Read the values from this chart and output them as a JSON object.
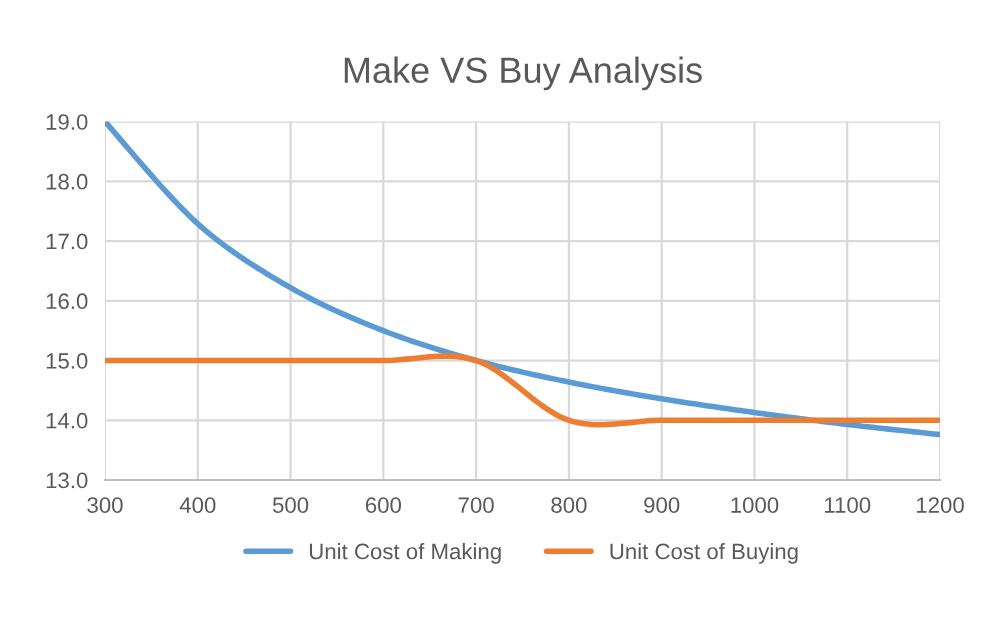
{
  "chart_data": {
    "type": "line",
    "title": "Make VS Buy Analysis",
    "x": [
      300,
      400,
      500,
      600,
      700,
      800,
      900,
      1000,
      1100,
      1200
    ],
    "series": [
      {
        "name": "Unit Cost of Making",
        "color": "#5b9bd5",
        "values": [
          19.0,
          17.29,
          16.22,
          15.5,
          15.0,
          14.64,
          14.36,
          14.13,
          13.93,
          13.76
        ]
      },
      {
        "name": "Unit Cost of Buying",
        "color": "#ed7d31",
        "values": [
          15,
          15,
          15,
          15,
          15,
          14,
          14,
          14,
          14,
          14
        ]
      }
    ],
    "xlim": [
      300,
      1200
    ],
    "xticks": [
      300,
      400,
      500,
      600,
      700,
      800,
      900,
      1000,
      1100,
      1200
    ],
    "ylim": [
      13,
      19
    ],
    "yticks": [
      {
        "value": 13,
        "label": "13.0"
      },
      {
        "value": 14,
        "label": "14.0"
      },
      {
        "value": 15,
        "label": "15.0"
      },
      {
        "value": 16,
        "label": "16.0"
      },
      {
        "value": 17,
        "label": "17.0"
      },
      {
        "value": 18,
        "label": "18.0"
      },
      {
        "value": 19,
        "label": "19.0"
      }
    ],
    "grid": true,
    "legend": "bottom",
    "marker": "none",
    "line_style": "solid"
  }
}
